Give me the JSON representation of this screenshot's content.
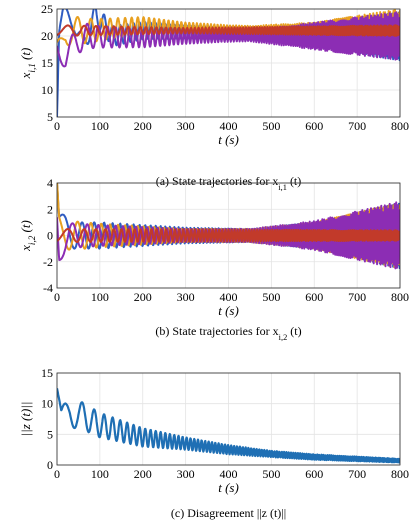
{
  "chart_data": [
    {
      "type": "line",
      "ylabel": "x_{i,1} (t)",
      "xlabel": "t (s)",
      "caption": "(a) State trajectories for x_{i,1} (t)",
      "xlim": [
        0,
        800
      ],
      "ylim": [
        5,
        25
      ],
      "xticks": [
        0,
        100,
        200,
        300,
        400,
        500,
        600,
        700,
        800
      ],
      "yticks": [
        5,
        10,
        15,
        20,
        25
      ],
      "grid": true,
      "series": [
        {
          "color": "#2f5cc2",
          "values": [
            [
              0,
              5
            ],
            [
              5,
              20
            ],
            [
              15,
              23.5
            ],
            [
              40,
              23
            ],
            [
              60,
              18
            ],
            [
              90,
              24
            ],
            [
              130,
              20
            ],
            [
              200,
              21
            ],
            [
              400,
              20.5
            ],
            [
              600,
              20
            ],
            [
              800,
              20
            ]
          ],
          "envelope": [
            [
              0,
              2
            ],
            [
              100,
              2
            ],
            [
              300,
              1.2
            ],
            [
              450,
              1
            ],
            [
              600,
              2
            ],
            [
              800,
              4.5
            ]
          ]
        },
        {
          "color": "#e8a020",
          "values": [
            [
              0,
              16
            ],
            [
              20,
              21
            ],
            [
              80,
              21
            ],
            [
              200,
              22
            ],
            [
              400,
              21
            ],
            [
              600,
              20.5
            ],
            [
              800,
              21
            ]
          ],
          "envelope": [
            [
              0,
              3
            ],
            [
              100,
              2
            ],
            [
              300,
              1
            ],
            [
              450,
              1
            ],
            [
              600,
              2
            ],
            [
              800,
              4
            ]
          ]
        },
        {
          "color": "#8c2db4",
          "values": [
            [
              0,
              20
            ],
            [
              20,
              16
            ],
            [
              60,
              20
            ],
            [
              200,
              19.5
            ],
            [
              400,
              20
            ],
            [
              600,
              20
            ],
            [
              800,
              20
            ]
          ],
          "envelope": [
            [
              0,
              3
            ],
            [
              100,
              2
            ],
            [
              300,
              1.2
            ],
            [
              450,
              1
            ],
            [
              600,
              2.5
            ],
            [
              800,
              4.5
            ]
          ]
        },
        {
          "color": "#c23a2a",
          "values": [
            [
              0,
              21
            ],
            [
              800,
              21
            ]
          ],
          "envelope": [
            [
              0,
              1
            ],
            [
              300,
              0.5
            ],
            [
              800,
              1
            ]
          ]
        }
      ]
    },
    {
      "type": "line",
      "ylabel": "x_{i,2} (t)",
      "xlabel": "t (s)",
      "caption": "(b) State trajectories for x_{i,2} (t)",
      "xlim": [
        0,
        800
      ],
      "ylim": [
        -4,
        4
      ],
      "xticks": [
        0,
        100,
        200,
        300,
        400,
        500,
        600,
        700,
        800
      ],
      "yticks": [
        -4,
        -2,
        0,
        2,
        4
      ],
      "grid": true,
      "series": [
        {
          "color": "#2f5cc2",
          "values": [
            [
              0,
              4
            ],
            [
              5,
              1
            ],
            [
              30,
              0
            ],
            [
              800,
              0
            ]
          ],
          "envelope": [
            [
              0,
              1
            ],
            [
              100,
              1
            ],
            [
              300,
              0.6
            ],
            [
              450,
              0.5
            ],
            [
              600,
              1
            ],
            [
              800,
              2.5
            ]
          ]
        },
        {
          "color": "#e8a020",
          "values": [
            [
              0,
              3
            ],
            [
              5,
              0.5
            ],
            [
              30,
              0
            ],
            [
              800,
              0
            ]
          ],
          "envelope": [
            [
              0,
              1.2
            ],
            [
              100,
              0.9
            ],
            [
              300,
              0.5
            ],
            [
              450,
              0.5
            ],
            [
              600,
              1
            ],
            [
              800,
              2.5
            ]
          ]
        },
        {
          "color": "#8c2db4",
          "values": [
            [
              0,
              2
            ],
            [
              5,
              -1
            ],
            [
              30,
              0
            ],
            [
              800,
              0
            ]
          ],
          "envelope": [
            [
              0,
              1
            ],
            [
              100,
              0.8
            ],
            [
              300,
              0.5
            ],
            [
              450,
              0.5
            ],
            [
              600,
              1.1
            ],
            [
              800,
              2.6
            ]
          ]
        },
        {
          "color": "#c23a2a",
          "values": [
            [
              0,
              0
            ],
            [
              800,
              0
            ]
          ],
          "envelope": [
            [
              0,
              0.5
            ],
            [
              800,
              0.4
            ]
          ]
        }
      ]
    },
    {
      "type": "line",
      "ylabel": "||z (t)||",
      "xlabel": "t (s)",
      "caption": "(c) Disagreement ||z (t)||",
      "xlim": [
        0,
        800
      ],
      "ylim": [
        0,
        15
      ],
      "xticks": [
        0,
        100,
        200,
        300,
        400,
        500,
        600,
        700,
        800
      ],
      "yticks": [
        0,
        5,
        10,
        15
      ],
      "grid": true,
      "series": [
        {
          "color": "#1f6fb4",
          "values": [
            [
              0,
              12.5
            ],
            [
              10,
              7
            ],
            [
              30,
              8.5
            ],
            [
              60,
              8
            ],
            [
              100,
              6.5
            ],
            [
              150,
              5.5
            ],
            [
              200,
              4.5
            ],
            [
              300,
              3.5
            ],
            [
              400,
              2.5
            ],
            [
              500,
              1.8
            ],
            [
              600,
              1.3
            ],
            [
              700,
              1
            ],
            [
              800,
              0.7
            ]
          ],
          "envelope": [
            [
              0,
              2.5
            ],
            [
              100,
              2
            ],
            [
              200,
              1.5
            ],
            [
              300,
              1
            ],
            [
              500,
              0.5
            ],
            [
              800,
              0.3
            ]
          ]
        }
      ]
    }
  ]
}
